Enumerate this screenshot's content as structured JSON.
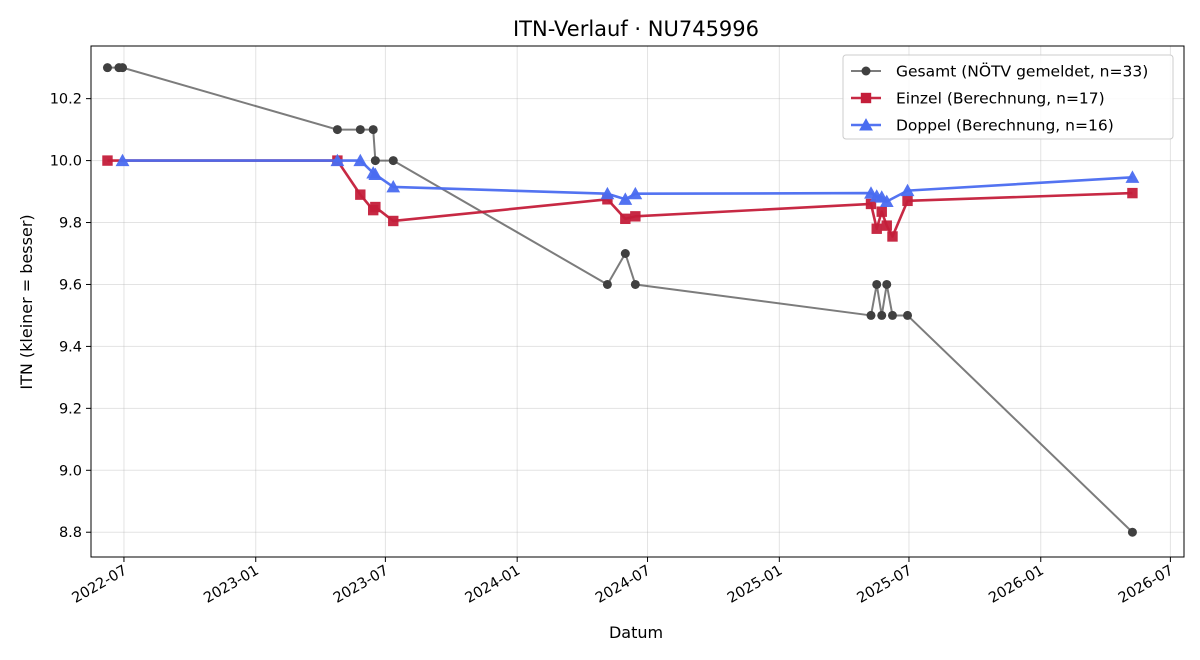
{
  "chart_data": {
    "type": "line",
    "title": "ITN-Verlauf · NU745996",
    "xlabel": "Datum",
    "ylabel": "ITN  (kleiner = besser)",
    "x_ticks": [
      "2022-07",
      "2023-01",
      "2023-07",
      "2024-01",
      "2024-07",
      "2025-01",
      "2025-07",
      "2026-01",
      "2026-07"
    ],
    "y_ticks": [
      "8.8",
      "9.0",
      "9.2",
      "9.4",
      "9.6",
      "9.8",
      "10.0",
      "10.2"
    ],
    "ylim": [
      8.72,
      10.37
    ],
    "xlim": [
      "2022-05-16",
      "2026-07-20"
    ],
    "grid": true,
    "legend_position": "top-right",
    "series": [
      {
        "name": "Gesamt (NÖTV gemeldet, n=33)",
        "color": "#505050",
        "marker": "circle",
        "points": [
          [
            "2022-06-08",
            10.3
          ],
          [
            "2022-06-24",
            10.3
          ],
          [
            "2022-06-29",
            10.3
          ],
          [
            "2023-04-25",
            10.1
          ],
          [
            "2023-05-27",
            10.1
          ],
          [
            "2023-06-14",
            10.1
          ],
          [
            "2023-06-17",
            10.0
          ],
          [
            "2023-07-12",
            10.0
          ],
          [
            "2024-05-06",
            9.6
          ],
          [
            "2024-05-31",
            9.7
          ],
          [
            "2024-06-14",
            9.6
          ],
          [
            "2025-05-09",
            9.5
          ],
          [
            "2025-05-17",
            9.6
          ],
          [
            "2025-05-24",
            9.5
          ],
          [
            "2025-05-31",
            9.6
          ],
          [
            "2025-06-08",
            9.5
          ],
          [
            "2025-06-29",
            9.5
          ],
          [
            "2026-05-09",
            8.8
          ]
        ]
      },
      {
        "name": "Einzel (Berechnung, n=17)",
        "color": "#c41e3a",
        "marker": "square",
        "points": [
          [
            "2022-06-08",
            10.0
          ],
          [
            "2023-04-25",
            10.0
          ],
          [
            "2023-05-27",
            9.89
          ],
          [
            "2023-06-14",
            9.84
          ],
          [
            "2023-06-17",
            9.85
          ],
          [
            "2023-07-12",
            9.805
          ],
          [
            "2024-05-06",
            9.875
          ],
          [
            "2024-05-31",
            9.812
          ],
          [
            "2024-06-14",
            9.82
          ],
          [
            "2025-05-09",
            9.86
          ],
          [
            "2025-05-17",
            9.78
          ],
          [
            "2025-05-24",
            9.835
          ],
          [
            "2025-05-31",
            9.79
          ],
          [
            "2025-06-08",
            9.755
          ],
          [
            "2025-06-29",
            9.87
          ],
          [
            "2026-05-09",
            9.895
          ]
        ]
      },
      {
        "name": "Doppel (Berechnung, n=16)",
        "color": "#4a6cf0",
        "marker": "triangle",
        "points": [
          [
            "2022-06-29",
            10.0
          ],
          [
            "2023-04-25",
            10.0
          ],
          [
            "2023-05-27",
            10.0
          ],
          [
            "2023-06-14",
            9.96
          ],
          [
            "2023-06-17",
            9.955
          ],
          [
            "2023-07-12",
            9.915
          ],
          [
            "2024-05-06",
            9.893
          ],
          [
            "2024-05-31",
            9.875
          ],
          [
            "2024-06-14",
            9.893
          ],
          [
            "2025-05-09",
            9.895
          ],
          [
            "2025-05-17",
            9.885
          ],
          [
            "2025-05-24",
            9.882
          ],
          [
            "2025-05-31",
            9.868
          ],
          [
            "2025-06-29",
            9.903
          ],
          [
            "2026-05-09",
            9.946
          ]
        ]
      }
    ]
  }
}
